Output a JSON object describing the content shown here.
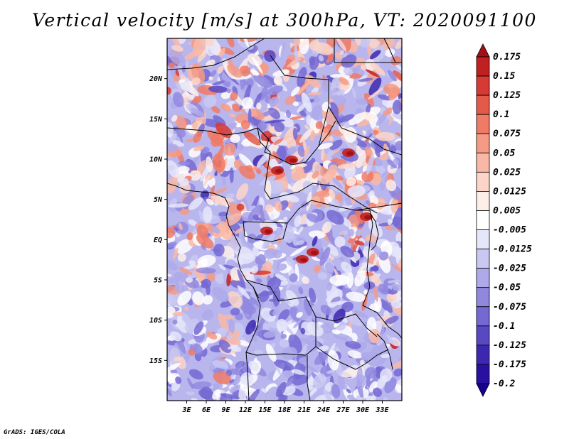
{
  "title": "Vertical velocity [m/s] at 300hPa, VT: 2020091100",
  "credit": "GrADS: IGES/COLA",
  "map": {
    "lon_range": [
      0,
      36
    ],
    "lat_range": [
      -20,
      25
    ],
    "lat_ticks": [
      "20N",
      "15N",
      "10N",
      "5N",
      "EQ",
      "5S",
      "10S",
      "15S"
    ],
    "lon_ticks": [
      "3E",
      "6E",
      "9E",
      "12E",
      "15E",
      "18E",
      "21E",
      "24E",
      "27E",
      "30E",
      "33E"
    ]
  },
  "colorbar": {
    "labels": [
      "0.175",
      "0.15",
      "0.125",
      "0.1",
      "0.075",
      "0.05",
      "0.025",
      "0.0125",
      "0.005",
      "-0.005",
      "-0.0125",
      "-0.025",
      "-0.05",
      "-0.075",
      "-0.1",
      "-0.125",
      "-0.175",
      "-0.2"
    ],
    "colors": [
      "#a50f15",
      "#c0201f",
      "#d63a32",
      "#e35a4a",
      "#ef7a66",
      "#f59a85",
      "#f9b8a6",
      "#fcd5c8",
      "#fdeee8",
      "#ffffff",
      "#e6e6fa",
      "#c9c8f2",
      "#aeaaea",
      "#9088df",
      "#7468d2",
      "#5848c2",
      "#3c28b0",
      "#2a10a0",
      "#1a0090"
    ]
  }
}
